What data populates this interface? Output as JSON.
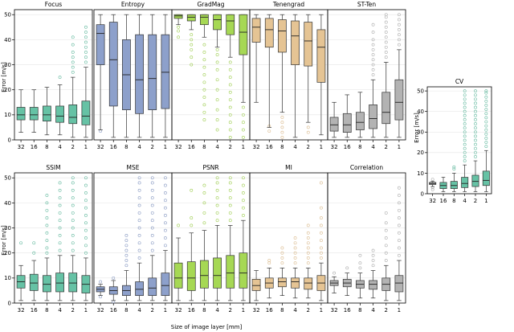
{
  "chart_data": {
    "type": "boxplot",
    "xlabel": "Size of image layer [mm]",
    "ylabel": "Error [m/s]",
    "categories": [
      "32",
      "16",
      "8",
      "4",
      "2",
      "1"
    ],
    "yticks": [
      0,
      10,
      20,
      30,
      40,
      50
    ],
    "ylim": [
      0,
      52
    ],
    "colors": {
      "teal": "#66c2a5",
      "blue": "#8da0cb",
      "green": "#a6d854",
      "tan": "#e5c494",
      "gray": "#b3b3b3"
    },
    "panels": [
      {
        "title": "Focus",
        "color": "teal",
        "boxes": [
          {
            "min": 3,
            "q1": 8,
            "median": 10,
            "q3": 13,
            "max": 20,
            "outliers": []
          },
          {
            "min": 3,
            "q1": 8,
            "median": 10,
            "q3": 13,
            "max": 20,
            "outliers": []
          },
          {
            "min": 2,
            "q1": 7.5,
            "median": 10,
            "q3": 13.5,
            "max": 21,
            "outliers": []
          },
          {
            "min": 2,
            "q1": 7,
            "median": 9.5,
            "q3": 13.5,
            "max": 22,
            "outliers": [
              25
            ]
          },
          {
            "min": 1,
            "q1": 6.5,
            "median": 9,
            "q3": 14,
            "max": 25,
            "outliers": [
              27,
              29,
              31,
              33,
              35,
              38,
              41
            ]
          },
          {
            "min": 1,
            "q1": 6,
            "median": 9.5,
            "q3": 15.5,
            "max": 29,
            "outliers": [
              31,
              33,
              35,
              37,
              39,
              41,
              43,
              45
            ]
          }
        ]
      },
      {
        "title": "Entropy",
        "color": "blue",
        "boxes": [
          {
            "min": 4,
            "q1": 30,
            "median": 42.5,
            "q3": 46,
            "max": 50,
            "outliers": [
              3.5
            ]
          },
          {
            "min": 1,
            "q1": 13.5,
            "median": 32,
            "q3": 47,
            "max": 50,
            "outliers": []
          },
          {
            "min": 1,
            "q1": 12,
            "median": 26,
            "q3": 40,
            "max": 50,
            "outliers": []
          },
          {
            "min": 1,
            "q1": 10.5,
            "median": 24,
            "q3": 42,
            "max": 50,
            "outliers": []
          },
          {
            "min": 1,
            "q1": 12,
            "median": 24.5,
            "q3": 42,
            "max": 50,
            "outliers": []
          },
          {
            "min": 1,
            "q1": 12.5,
            "median": 27,
            "q3": 42,
            "max": 50,
            "outliers": []
          }
        ]
      },
      {
        "title": "GradMag",
        "color": "green",
        "boxes": [
          {
            "min": 46,
            "q1": 48.5,
            "median": 49.5,
            "q3": 50,
            "max": 50,
            "outliers": [
              41,
              43.5,
              45
            ]
          },
          {
            "min": 44,
            "q1": 47.5,
            "median": 49,
            "q3": 50,
            "max": 50,
            "outliers": [
              30,
              33,
              36,
              38,
              40,
              42
            ]
          },
          {
            "min": 41,
            "q1": 46,
            "median": 49,
            "q3": 50,
            "max": 50,
            "outliers": [
              8,
              11,
              14,
              17,
              20,
              23,
              26,
              29,
              32,
              35,
              38
            ]
          },
          {
            "min": 37,
            "q1": 44,
            "median": 48,
            "q3": 50,
            "max": 50,
            "outliers": [
              4,
              8,
              12,
              16,
              20,
              24,
              28,
              31,
              34,
              36
            ]
          },
          {
            "min": 33,
            "q1": 42,
            "median": 47.5,
            "q3": 50,
            "max": 50,
            "outliers": [
              1,
              4,
              7,
              10,
              13,
              16,
              19,
              22,
              25,
              28,
              31
            ]
          },
          {
            "min": 15,
            "q1": 34,
            "median": 43,
            "q3": 50,
            "max": 50,
            "outliers": [
              1,
              4,
              7,
              10,
              13
            ]
          }
        ]
      },
      {
        "title": "Tenengrad",
        "color": "tan",
        "boxes": [
          {
            "min": 15,
            "q1": 39,
            "median": 45,
            "q3": 48.5,
            "max": 50,
            "outliers": []
          },
          {
            "min": 5,
            "q1": 37,
            "median": 44,
            "q3": 48.5,
            "max": 50,
            "outliers": [
              3.5,
              5.5
            ]
          },
          {
            "min": 11,
            "q1": 35,
            "median": 43.5,
            "q3": 48,
            "max": 50,
            "outliers": [
              1,
              3,
              5,
              7,
              9
            ]
          },
          {
            "min": 1,
            "q1": 30,
            "median": 41.5,
            "q3": 47.5,
            "max": 50,
            "outliers": []
          },
          {
            "min": 7,
            "q1": 29.5,
            "median": 39.5,
            "q3": 47,
            "max": 50,
            "outliers": [
              3,
              5
            ]
          },
          {
            "min": 2,
            "q1": 23,
            "median": 37,
            "q3": 44,
            "max": 50,
            "outliers": []
          }
        ]
      },
      {
        "title": "ST-Ten",
        "color": "gray",
        "boxes": [
          {
            "min": 1,
            "q1": 3.5,
            "median": 6,
            "q3": 9,
            "max": 15,
            "outliers": []
          },
          {
            "min": 1,
            "q1": 3,
            "median": 6,
            "q3": 10.5,
            "max": 18,
            "outliers": []
          },
          {
            "min": 1,
            "q1": 4,
            "median": 7,
            "q3": 11,
            "max": 19,
            "outliers": []
          },
          {
            "min": 1,
            "q1": 4.5,
            "median": 8.5,
            "q3": 14,
            "max": 24,
            "outliers": [
              26,
              28,
              30,
              32,
              34,
              36,
              38,
              40,
              43,
              46
            ]
          },
          {
            "min": 1,
            "q1": 6.5,
            "median": 11,
            "q3": 19,
            "max": 31,
            "outliers": [
              33,
              35,
              37,
              39,
              41,
              43,
              45,
              47,
              49,
              50
            ]
          },
          {
            "min": 1,
            "q1": 8,
            "median": 15,
            "q3": 24,
            "max": 36,
            "outliers": [
              38,
              40,
              42,
              44,
              46,
              48,
              50
            ]
          }
        ]
      },
      {
        "title": "SSIM",
        "color": "teal",
        "boxes": [
          {
            "min": 1,
            "q1": 6,
            "median": 8.5,
            "q3": 11,
            "max": 15,
            "outliers": [
              24
            ]
          },
          {
            "min": 1,
            "q1": 5,
            "median": 8,
            "q3": 11.5,
            "max": 17,
            "outliers": [
              20,
              24
            ]
          },
          {
            "min": 1,
            "q1": 4.5,
            "median": 7.5,
            "q3": 11,
            "max": 18,
            "outliers": [
              20,
              22,
              25,
              28,
              31,
              34,
              37,
              40,
              43
            ]
          },
          {
            "min": 1,
            "q1": 4.5,
            "median": 8,
            "q3": 12,
            "max": 19,
            "outliers": [
              21,
              24,
              27,
              30,
              33,
              36,
              39,
              42,
              45,
              48
            ]
          },
          {
            "min": 1,
            "q1": 4.5,
            "median": 8,
            "q3": 12,
            "max": 19,
            "outliers": [
              21,
              24,
              27,
              30,
              33,
              36,
              39,
              42,
              45,
              48,
              50
            ]
          },
          {
            "min": 1,
            "q1": 4,
            "median": 7.5,
            "q3": 11,
            "max": 18,
            "outliers": [
              20,
              23,
              26,
              29,
              32,
              35,
              38,
              41,
              44,
              47,
              50
            ]
          }
        ]
      },
      {
        "title": "MSE",
        "color": "blue",
        "boxes": [
          {
            "min": 3,
            "q1": 4.5,
            "median": 5.5,
            "q3": 6.5,
            "max": 7.5,
            "outliers": [
              2.5,
              8.5
            ]
          },
          {
            "min": 1,
            "q1": 3.5,
            "median": 5,
            "q3": 6.5,
            "max": 9,
            "outliers": [
              0.5,
              10
            ]
          },
          {
            "min": 1,
            "q1": 3,
            "median": 5,
            "q3": 7,
            "max": 13,
            "outliers": [
              15,
              17,
              19,
              21,
              23,
              25,
              27
            ]
          },
          {
            "min": 1,
            "q1": 3,
            "median": 5.5,
            "q3": 8.5,
            "max": 16,
            "outliers": [
              18,
              21,
              24,
              27,
              30,
              33,
              36,
              39,
              42,
              45,
              48,
              50
            ]
          },
          {
            "min": 1,
            "q1": 3,
            "median": 6,
            "q3": 10,
            "max": 19,
            "outliers": [
              21,
              24,
              27,
              30,
              33,
              36,
              39,
              42,
              45,
              48,
              50
            ]
          },
          {
            "min": 1,
            "q1": 3,
            "median": 7,
            "q3": 12,
            "max": 21,
            "outliers": [
              23,
              26,
              29,
              32,
              35,
              38,
              41,
              44,
              47,
              50
            ]
          }
        ]
      },
      {
        "title": "PSNR",
        "color": "green",
        "boxes": [
          {
            "min": 1,
            "q1": 6,
            "median": 10,
            "q3": 16,
            "max": 26,
            "outliers": [
              31
            ]
          },
          {
            "min": 1,
            "q1": 5,
            "median": 10,
            "q3": 16.5,
            "max": 28,
            "outliers": [
              31,
              34,
              45
            ]
          },
          {
            "min": 1,
            "q1": 6,
            "median": 11,
            "q3": 17,
            "max": 29,
            "outliers": [
              32,
              36,
              40,
              44,
              47
            ]
          },
          {
            "min": 1,
            "q1": 6,
            "median": 11,
            "q3": 18,
            "max": 31,
            "outliers": [
              33,
              36,
              39,
              42,
              45,
              48,
              50
            ]
          },
          {
            "min": 1,
            "q1": 6,
            "median": 12,
            "q3": 19,
            "max": 31,
            "outliers": [
              33,
              36,
              39,
              42,
              45,
              48,
              50
            ]
          },
          {
            "min": 1,
            "q1": 6,
            "median": 12,
            "q3": 20,
            "max": 33,
            "outliers": [
              35,
              38,
              41,
              44,
              47,
              50
            ]
          }
        ]
      },
      {
        "title": "MI",
        "color": "tan",
        "boxes": [
          {
            "min": 1,
            "q1": 5,
            "median": 7,
            "q3": 9.5,
            "max": 13,
            "outliers": []
          },
          {
            "min": 2,
            "q1": 6,
            "median": 8,
            "q3": 10,
            "max": 14,
            "outliers": [
              16,
              17
            ]
          },
          {
            "min": 3,
            "q1": 6.5,
            "median": 8.5,
            "q3": 10,
            "max": 14,
            "outliers": [
              16,
              18,
              20,
              22
            ]
          },
          {
            "min": 2,
            "q1": 6,
            "median": 8.5,
            "q3": 10,
            "max": 14,
            "outliers": [
              16,
              18,
              20,
              22,
              24,
              26
            ]
          },
          {
            "min": 2,
            "q1": 5.5,
            "median": 8,
            "q3": 10,
            "max": 14,
            "outliers": [
              16,
              18,
              20,
              22,
              24,
              26,
              28,
              31
            ]
          },
          {
            "min": 1,
            "q1": 5,
            "median": 8,
            "q3": 11,
            "max": 16,
            "outliers": [
              18,
              20,
              22,
              25,
              28,
              31,
              34,
              38,
              48
            ]
          }
        ]
      },
      {
        "title": "Correlation",
        "color": "gray",
        "boxes": [
          {
            "min": 4,
            "q1": 7,
            "median": 8,
            "q3": 9,
            "max": 10.5,
            "outliers": [
              12
            ]
          },
          {
            "min": 3,
            "q1": 6.5,
            "median": 8,
            "q3": 9.5,
            "max": 12,
            "outliers": [
              14
            ]
          },
          {
            "min": 2,
            "q1": 6,
            "median": 7.5,
            "q3": 9,
            "max": 12,
            "outliers": [
              14,
              16,
              19
            ]
          },
          {
            "min": 2,
            "q1": 5.5,
            "median": 7.5,
            "q3": 9,
            "max": 13,
            "outliers": [
              15,
              17,
              19,
              21
            ]
          },
          {
            "min": 1,
            "q1": 5,
            "median": 7.5,
            "q3": 10,
            "max": 15,
            "outliers": [
              17,
              20,
              23,
              26,
              29,
              32,
              36
            ]
          },
          {
            "min": 1,
            "q1": 4.5,
            "median": 8,
            "q3": 11,
            "max": 17,
            "outliers": [
              19,
              22,
              25,
              28,
              31,
              34,
              37,
              40,
              43,
              46
            ]
          }
        ]
      },
      {
        "title": "CV",
        "color": "gray",
        "colors_by_box": [
          "gray",
          "teal",
          "teal",
          "teal",
          "teal",
          "teal"
        ],
        "boxes": [
          {
            "min": 3.5,
            "q1": 4.5,
            "median": 5,
            "q3": 5.5,
            "max": 6,
            "outliers": [
              2,
              3,
              7
            ]
          },
          {
            "min": 1,
            "q1": 2.5,
            "median": 4,
            "q3": 5.5,
            "max": 8,
            "outliers": []
          },
          {
            "min": 1,
            "q1": 2.5,
            "median": 4,
            "q3": 6,
            "max": 10,
            "outliers": [
              12,
              13
            ]
          },
          {
            "min": 1,
            "q1": 3,
            "median": 5,
            "q3": 8,
            "max": 14,
            "outliers": [
              16,
              18,
              20,
              22,
              24,
              26,
              28,
              30,
              32,
              34,
              36,
              38,
              40,
              42,
              44,
              46,
              48,
              50
            ]
          },
          {
            "min": 1,
            "q1": 3.5,
            "median": 6,
            "q3": 9,
            "max": 16,
            "outliers": [
              18,
              20,
              22,
              24,
              26,
              28,
              30,
              32,
              34,
              36,
              38,
              40,
              42,
              44,
              46,
              48,
              50
            ]
          },
          {
            "min": 1,
            "q1": 4,
            "median": 6.5,
            "q3": 11,
            "max": 21,
            "outliers": [
              23,
              25,
              27,
              29,
              31,
              33,
              35,
              37,
              39,
              41,
              43,
              45,
              47,
              49,
              50
            ]
          }
        ]
      }
    ]
  }
}
